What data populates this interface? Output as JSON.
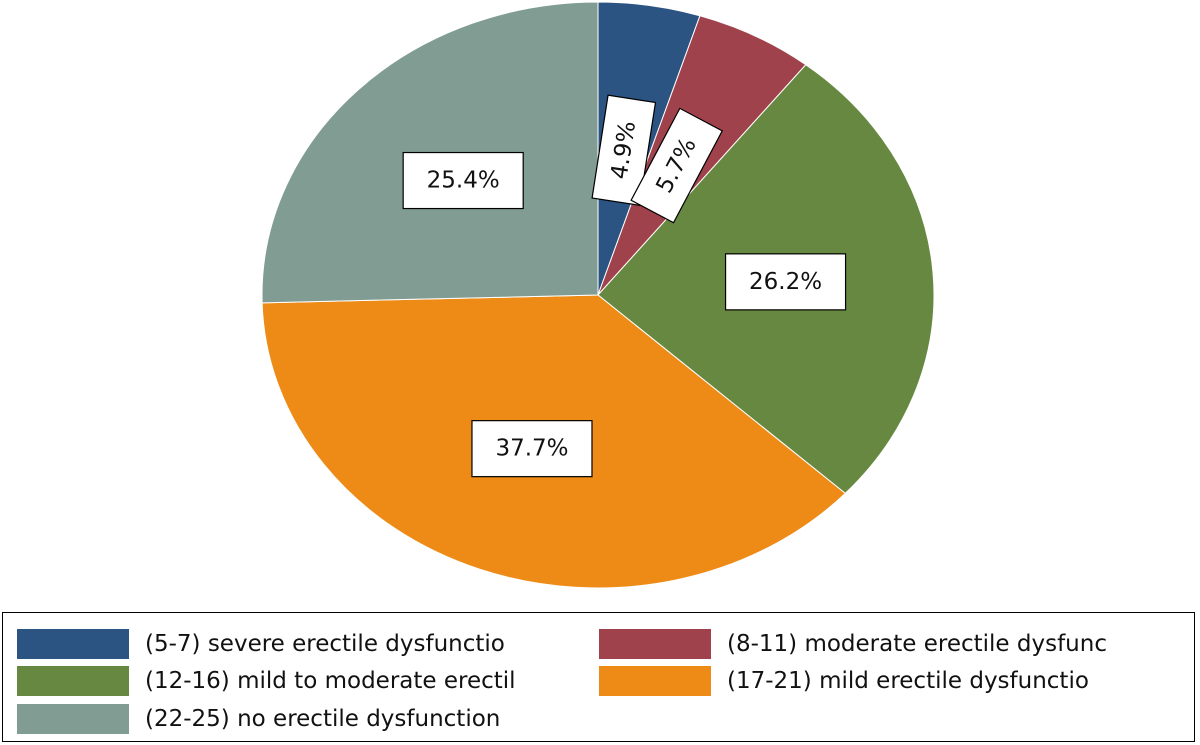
{
  "chart_data": {
    "type": "pie",
    "categories": [
      "(5-7) severe erectile dysfunctio",
      "(8-11) moderate erectile dysfunc",
      "(12-16) mild to moderate erectil",
      "(17-21) mild erectile dysfunctio",
      "(22-25) no erectile dysfunction"
    ],
    "values": [
      4.9,
      5.7,
      26.2,
      37.7,
      25.4
    ],
    "labels": [
      "4.9%",
      "5.7%",
      "26.2%",
      "37.7%",
      "25.4%"
    ],
    "colors": [
      "#2c5482",
      "#a0424b",
      "#678840",
      "#ee8b17",
      "#819c93"
    ],
    "legend_position": "bottom"
  }
}
